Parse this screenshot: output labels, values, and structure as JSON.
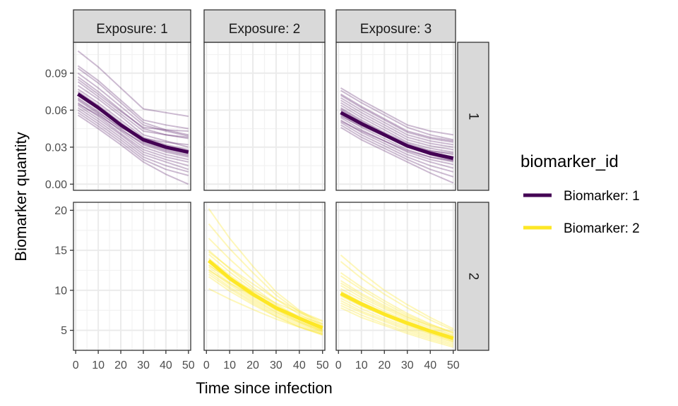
{
  "chart_data": {
    "type": "line",
    "xlabel": "Time since infection",
    "ylabel": "Biomarker quantity",
    "x_ticks": [
      0,
      10,
      20,
      30,
      40,
      50
    ],
    "x_tick_labels": [
      "0",
      "10",
      "20",
      "30",
      "40",
      "50"
    ],
    "xlim": [
      -1,
      51
    ],
    "grid": true,
    "legend": {
      "title": "biomarker_id",
      "position": "right",
      "entries": [
        {
          "label": "Biomarker: 1",
          "color": "#440154"
        },
        {
          "label": "Biomarker: 2",
          "color": "#FDE725"
        }
      ]
    },
    "facet_columns": [
      "Exposure: 1",
      "Exposure: 2",
      "Exposure: 3"
    ],
    "facet_rows": [
      {
        "label": "1",
        "ylim": [
          -0.005,
          0.115
        ],
        "y_ticks": [
          0.0,
          0.03,
          0.06,
          0.09
        ],
        "y_tick_labels": [
          "0.00",
          "0.03",
          "0.06",
          "0.09"
        ]
      },
      {
        "label": "2",
        "ylim": [
          2.5,
          21.0
        ],
        "y_ticks": [
          5,
          10,
          15,
          20
        ],
        "y_tick_labels": [
          "5",
          "10",
          "15",
          "20"
        ]
      }
    ],
    "x": [
      1,
      10,
      20,
      30,
      40,
      50
    ],
    "panels": [
      {
        "column": "Exposure: 1",
        "row": "1",
        "biomarker": "Biomarker: 1",
        "color": "#440154",
        "mean": [
          0.073,
          0.062,
          0.048,
          0.036,
          0.03,
          0.026
        ],
        "draws": [
          [
            0.108,
            0.095,
            0.078,
            0.061,
            0.058,
            0.055
          ],
          [
            0.096,
            0.084,
            0.068,
            0.052,
            0.048,
            0.045
          ],
          [
            0.094,
            0.082,
            0.066,
            0.05,
            0.044,
            0.04
          ],
          [
            0.09,
            0.078,
            0.063,
            0.048,
            0.043,
            0.039
          ],
          [
            0.087,
            0.075,
            0.06,
            0.045,
            0.04,
            0.037
          ],
          [
            0.083,
            0.071,
            0.057,
            0.043,
            0.04,
            0.038
          ],
          [
            0.08,
            0.069,
            0.055,
            0.04,
            0.035,
            0.03
          ],
          [
            0.077,
            0.066,
            0.052,
            0.038,
            0.032,
            0.028
          ],
          [
            0.075,
            0.064,
            0.05,
            0.036,
            0.03,
            0.026
          ],
          [
            0.072,
            0.061,
            0.047,
            0.034,
            0.028,
            0.024
          ],
          [
            0.07,
            0.059,
            0.045,
            0.032,
            0.026,
            0.022
          ],
          [
            0.068,
            0.057,
            0.043,
            0.03,
            0.024,
            0.02
          ],
          [
            0.066,
            0.055,
            0.041,
            0.028,
            0.022,
            0.018
          ],
          [
            0.064,
            0.053,
            0.04,
            0.026,
            0.02,
            0.015
          ],
          [
            0.062,
            0.051,
            0.038,
            0.024,
            0.018,
            0.012
          ],
          [
            0.06,
            0.049,
            0.036,
            0.022,
            0.015,
            0.01
          ],
          [
            0.058,
            0.047,
            0.034,
            0.02,
            0.012,
            0.007
          ],
          [
            0.056,
            0.045,
            0.032,
            0.018,
            0.008,
            0.0
          ],
          [
            0.074,
            0.063,
            0.049,
            0.035,
            0.029,
            0.025
          ],
          [
            0.069,
            0.058,
            0.046,
            0.037,
            0.034,
            0.032
          ],
          [
            0.085,
            0.073,
            0.059,
            0.046,
            0.044,
            0.043
          ],
          [
            0.065,
            0.056,
            0.044,
            0.033,
            0.027,
            0.023
          ]
        ]
      },
      {
        "column": "Exposure: 3",
        "row": "1",
        "biomarker": "Biomarker: 1",
        "color": "#440154",
        "mean": [
          0.058,
          0.049,
          0.04,
          0.031,
          0.025,
          0.021
        ],
        "draws": [
          [
            0.078,
            0.068,
            0.058,
            0.048,
            0.043,
            0.04
          ],
          [
            0.076,
            0.066,
            0.056,
            0.046,
            0.04,
            0.036
          ],
          [
            0.073,
            0.063,
            0.053,
            0.043,
            0.038,
            0.035
          ],
          [
            0.07,
            0.06,
            0.05,
            0.04,
            0.035,
            0.032
          ],
          [
            0.068,
            0.058,
            0.048,
            0.038,
            0.033,
            0.03
          ],
          [
            0.066,
            0.056,
            0.046,
            0.036,
            0.031,
            0.028
          ],
          [
            0.064,
            0.054,
            0.044,
            0.034,
            0.029,
            0.026
          ],
          [
            0.062,
            0.052,
            0.042,
            0.033,
            0.027,
            0.024
          ],
          [
            0.06,
            0.05,
            0.041,
            0.032,
            0.026,
            0.022
          ],
          [
            0.058,
            0.048,
            0.039,
            0.03,
            0.024,
            0.02
          ],
          [
            0.056,
            0.046,
            0.037,
            0.028,
            0.022,
            0.018
          ],
          [
            0.054,
            0.044,
            0.035,
            0.026,
            0.02,
            0.016
          ],
          [
            0.052,
            0.042,
            0.033,
            0.024,
            0.018,
            0.013
          ],
          [
            0.05,
            0.04,
            0.031,
            0.022,
            0.015,
            0.01
          ],
          [
            0.048,
            0.038,
            0.029,
            0.02,
            0.012,
            0.006
          ],
          [
            0.046,
            0.036,
            0.027,
            0.018,
            0.009,
            0.001
          ],
          [
            0.055,
            0.047,
            0.039,
            0.031,
            0.027,
            0.025
          ],
          [
            0.061,
            0.051,
            0.041,
            0.031,
            0.024,
            0.019
          ],
          [
            0.072,
            0.062,
            0.052,
            0.042,
            0.037,
            0.034
          ],
          [
            0.051,
            0.043,
            0.035,
            0.027,
            0.022,
            0.019
          ]
        ]
      },
      {
        "column": "Exposure: 2",
        "row": "2",
        "biomarker": "Biomarker: 2",
        "color": "#FDE725",
        "mean": [
          13.7,
          11.5,
          9.5,
          7.8,
          6.5,
          5.3
        ],
        "draws": [
          [
            20.2,
            16.5,
            13.0,
            9.8,
            7.5,
            5.8
          ],
          [
            18.3,
            15.2,
            12.2,
            9.4,
            7.3,
            5.6
          ],
          [
            16.5,
            13.9,
            11.3,
            8.9,
            7.0,
            5.5
          ],
          [
            15.0,
            12.7,
            10.4,
            8.3,
            6.6,
            5.2
          ],
          [
            14.5,
            12.3,
            10.1,
            8.1,
            6.5,
            5.1
          ],
          [
            14.0,
            11.9,
            9.8,
            7.9,
            6.4,
            5.0
          ],
          [
            13.8,
            11.6,
            9.6,
            7.8,
            6.3,
            5.0
          ],
          [
            13.5,
            11.4,
            9.4,
            7.6,
            6.1,
            4.9
          ],
          [
            13.2,
            11.2,
            9.2,
            7.5,
            6.1,
            4.9
          ],
          [
            12.9,
            10.9,
            9.0,
            7.3,
            6.0,
            4.8
          ],
          [
            12.6,
            10.7,
            8.8,
            7.2,
            5.9,
            4.7
          ],
          [
            12.3,
            10.4,
            8.6,
            7.0,
            5.7,
            4.6
          ],
          [
            12.0,
            10.2,
            8.4,
            6.8,
            5.5,
            4.5
          ],
          [
            11.7,
            9.9,
            8.2,
            6.7,
            5.4,
            4.4
          ],
          [
            10.2,
            8.9,
            7.6,
            6.4,
            5.4,
            4.5
          ],
          [
            14.8,
            12.8,
            10.8,
            8.9,
            7.4,
            6.2
          ],
          [
            13.1,
            11.5,
            9.9,
            8.4,
            7.2,
            6.1
          ],
          [
            12.5,
            10.9,
            9.3,
            7.9,
            6.8,
            5.8
          ]
        ]
      },
      {
        "column": "Exposure: 3",
        "row": "2",
        "biomarker": "Biomarker: 2",
        "color": "#FDE725",
        "mean": [
          9.6,
          8.3,
          7.0,
          5.9,
          4.9,
          4.0
        ],
        "draws": [
          [
            14.4,
            12.2,
            10.0,
            8.2,
            6.6,
            5.2
          ],
          [
            13.6,
            11.5,
            9.5,
            7.8,
            6.3,
            5.0
          ],
          [
            12.2,
            10.4,
            8.7,
            7.1,
            5.8,
            4.6
          ],
          [
            11.2,
            9.6,
            8.1,
            6.7,
            5.5,
            4.4
          ],
          [
            10.6,
            9.1,
            7.7,
            6.4,
            5.3,
            4.3
          ],
          [
            10.2,
            8.8,
            7.4,
            6.2,
            5.1,
            4.2
          ],
          [
            9.9,
            8.5,
            7.2,
            6.0,
            5.0,
            4.1
          ],
          [
            9.6,
            8.2,
            7.0,
            5.8,
            4.8,
            3.9
          ],
          [
            9.3,
            8.0,
            6.8,
            5.6,
            4.6,
            3.8
          ],
          [
            9.0,
            7.7,
            6.5,
            5.4,
            4.5,
            3.6
          ],
          [
            8.7,
            7.4,
            6.3,
            5.2,
            4.3,
            3.5
          ],
          [
            8.4,
            7.2,
            6.1,
            5.0,
            4.1,
            3.3
          ],
          [
            8.1,
            6.9,
            5.8,
            4.8,
            3.9,
            3.1
          ],
          [
            7.8,
            6.6,
            5.6,
            4.6,
            3.7,
            2.9
          ],
          [
            11.8,
            10.1,
            8.4,
            6.9,
            5.7,
            4.8
          ],
          [
            10.9,
            9.4,
            7.9,
            6.6,
            5.6,
            4.7
          ],
          [
            9.4,
            8.1,
            6.9,
            5.7,
            4.7,
            3.7
          ]
        ]
      }
    ]
  }
}
